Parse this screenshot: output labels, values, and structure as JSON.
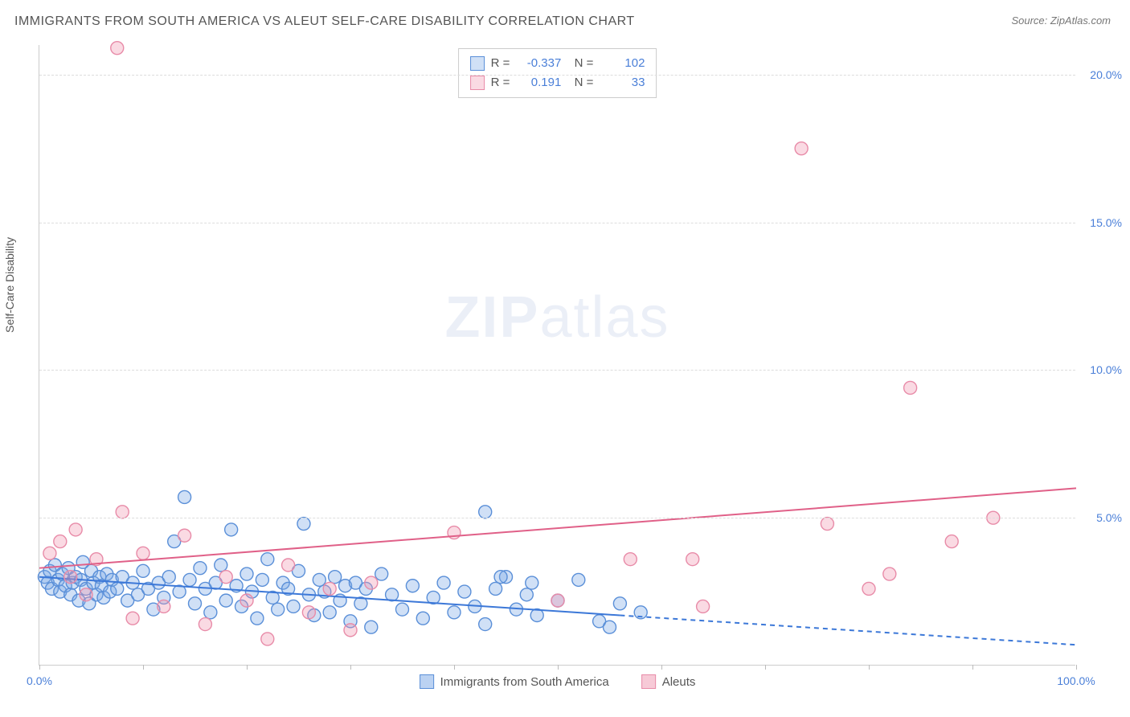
{
  "title": "IMMIGRANTS FROM SOUTH AMERICA VS ALEUT SELF-CARE DISABILITY CORRELATION CHART",
  "source": "Source: ZipAtlas.com",
  "ylabel": "Self-Care Disability",
  "watermark": {
    "zip": "ZIP",
    "atlas": "atlas"
  },
  "chart": {
    "type": "scatter",
    "xlim": [
      0,
      100
    ],
    "ylim": [
      0,
      21
    ],
    "xticks": [
      0,
      10,
      20,
      30,
      40,
      50,
      60,
      70,
      80,
      90,
      100
    ],
    "xtick_labels_shown": {
      "0": "0.0%",
      "100": "100.0%"
    },
    "yticks": [
      5,
      10,
      15,
      20
    ],
    "ytick_labels": [
      "5.0%",
      "10.0%",
      "15.0%",
      "20.0%"
    ],
    "grid_color": "#dddddd",
    "axis_color": "#cccccc",
    "background_color": "#ffffff",
    "marker_radius": 8,
    "marker_stroke_width": 1.4,
    "series": [
      {
        "name": "Immigrants from South America",
        "fill_color": "rgba(120,165,230,0.35)",
        "stroke_color": "#5a8fd8",
        "r_value": "-0.337",
        "n_value": "102",
        "trend": {
          "x1": 0,
          "y1": 3.0,
          "x2": 56,
          "y2": 1.7,
          "dash_from_x": 56,
          "dash_to_x": 100,
          "dash_to_y": 0.7,
          "color": "#3c78d8",
          "width": 2
        },
        "points": [
          [
            0.5,
            3.0
          ],
          [
            0.8,
            2.8
          ],
          [
            1.0,
            3.2
          ],
          [
            1.2,
            2.6
          ],
          [
            1.5,
            3.4
          ],
          [
            1.8,
            2.9
          ],
          [
            2.0,
            2.5
          ],
          [
            2.2,
            3.1
          ],
          [
            2.5,
            2.7
          ],
          [
            2.8,
            3.3
          ],
          [
            3.0,
            2.4
          ],
          [
            3.2,
            2.8
          ],
          [
            3.5,
            3.0
          ],
          [
            3.8,
            2.2
          ],
          [
            4.0,
            2.9
          ],
          [
            4.2,
            3.5
          ],
          [
            4.5,
            2.6
          ],
          [
            4.8,
            2.1
          ],
          [
            5.0,
            3.2
          ],
          [
            5.2,
            2.8
          ],
          [
            5.5,
            2.4
          ],
          [
            5.8,
            3.0
          ],
          [
            6.0,
            2.7
          ],
          [
            6.2,
            2.3
          ],
          [
            6.5,
            3.1
          ],
          [
            6.8,
            2.5
          ],
          [
            7.0,
            2.9
          ],
          [
            7.5,
            2.6
          ],
          [
            8.0,
            3.0
          ],
          [
            8.5,
            2.2
          ],
          [
            9.0,
            2.8
          ],
          [
            9.5,
            2.4
          ],
          [
            10.0,
            3.2
          ],
          [
            10.5,
            2.6
          ],
          [
            11.0,
            1.9
          ],
          [
            11.5,
            2.8
          ],
          [
            12.0,
            2.3
          ],
          [
            12.5,
            3.0
          ],
          [
            13.0,
            4.2
          ],
          [
            13.5,
            2.5
          ],
          [
            14.0,
            5.7
          ],
          [
            14.5,
            2.9
          ],
          [
            15.0,
            2.1
          ],
          [
            15.5,
            3.3
          ],
          [
            16.0,
            2.6
          ],
          [
            16.5,
            1.8
          ],
          [
            17.0,
            2.8
          ],
          [
            17.5,
            3.4
          ],
          [
            18.0,
            2.2
          ],
          [
            18.5,
            4.6
          ],
          [
            19.0,
            2.7
          ],
          [
            19.5,
            2.0
          ],
          [
            20.0,
            3.1
          ],
          [
            20.5,
            2.5
          ],
          [
            21.0,
            1.6
          ],
          [
            21.5,
            2.9
          ],
          [
            22.0,
            3.6
          ],
          [
            22.5,
            2.3
          ],
          [
            23.0,
            1.9
          ],
          [
            23.5,
            2.8
          ],
          [
            24.0,
            2.6
          ],
          [
            24.5,
            2.0
          ],
          [
            25.0,
            3.2
          ],
          [
            25.5,
            4.8
          ],
          [
            26.0,
            2.4
          ],
          [
            26.5,
            1.7
          ],
          [
            27.0,
            2.9
          ],
          [
            27.5,
            2.5
          ],
          [
            28.0,
            1.8
          ],
          [
            28.5,
            3.0
          ],
          [
            29.0,
            2.2
          ],
          [
            29.5,
            2.7
          ],
          [
            30.0,
            1.5
          ],
          [
            30.5,
            2.8
          ],
          [
            31.0,
            2.1
          ],
          [
            31.5,
            2.6
          ],
          [
            32.0,
            1.3
          ],
          [
            33.0,
            3.1
          ],
          [
            34.0,
            2.4
          ],
          [
            35.0,
            1.9
          ],
          [
            36.0,
            2.7
          ],
          [
            37.0,
            1.6
          ],
          [
            38.0,
            2.3
          ],
          [
            39.0,
            2.8
          ],
          [
            40.0,
            1.8
          ],
          [
            41.0,
            2.5
          ],
          [
            42.0,
            2.0
          ],
          [
            43.0,
            1.4
          ],
          [
            44.0,
            2.6
          ],
          [
            45.0,
            3.0
          ],
          [
            46.0,
            1.9
          ],
          [
            47.0,
            2.4
          ],
          [
            48.0,
            1.7
          ],
          [
            50.0,
            2.2
          ],
          [
            52.0,
            2.9
          ],
          [
            54.0,
            1.5
          ],
          [
            56.0,
            2.1
          ],
          [
            58.0,
            1.8
          ],
          [
            43.0,
            5.2
          ],
          [
            44.5,
            3.0
          ],
          [
            47.5,
            2.8
          ],
          [
            55.0,
            1.3
          ]
        ]
      },
      {
        "name": "Aleuts",
        "fill_color": "rgba(240,150,175,0.35)",
        "stroke_color": "#e88ba8",
        "r_value": "0.191",
        "n_value": "33",
        "trend": {
          "x1": 0,
          "y1": 3.3,
          "x2": 100,
          "y2": 6.0,
          "color": "#e06088",
          "width": 2
        },
        "points": [
          [
            1.0,
            3.8
          ],
          [
            2.0,
            4.2
          ],
          [
            3.0,
            3.0
          ],
          [
            3.5,
            4.6
          ],
          [
            4.5,
            2.4
          ],
          [
            5.5,
            3.6
          ],
          [
            7.5,
            20.9
          ],
          [
            8.0,
            5.2
          ],
          [
            9.0,
            1.6
          ],
          [
            10.0,
            3.8
          ],
          [
            12.0,
            2.0
          ],
          [
            14.0,
            4.4
          ],
          [
            16.0,
            1.4
          ],
          [
            18.0,
            3.0
          ],
          [
            20.0,
            2.2
          ],
          [
            22.0,
            0.9
          ],
          [
            24.0,
            3.4
          ],
          [
            26.0,
            1.8
          ],
          [
            28.0,
            2.6
          ],
          [
            30.0,
            1.2
          ],
          [
            32.0,
            2.8
          ],
          [
            40.0,
            4.5
          ],
          [
            50.0,
            2.2
          ],
          [
            57.0,
            3.6
          ],
          [
            63.0,
            3.6
          ],
          [
            64.0,
            2.0
          ],
          [
            73.5,
            17.5
          ],
          [
            76.0,
            4.8
          ],
          [
            80.0,
            2.6
          ],
          [
            82.0,
            3.1
          ],
          [
            84.0,
            9.4
          ],
          [
            88.0,
            4.2
          ],
          [
            92.0,
            5.0
          ]
        ]
      }
    ]
  },
  "bottom_legend": [
    {
      "label": "Immigrants from South America",
      "fill": "rgba(120,165,230,0.5)",
      "stroke": "#5a8fd8"
    },
    {
      "label": "Aleuts",
      "fill": "rgba(240,150,175,0.5)",
      "stroke": "#e88ba8"
    }
  ]
}
